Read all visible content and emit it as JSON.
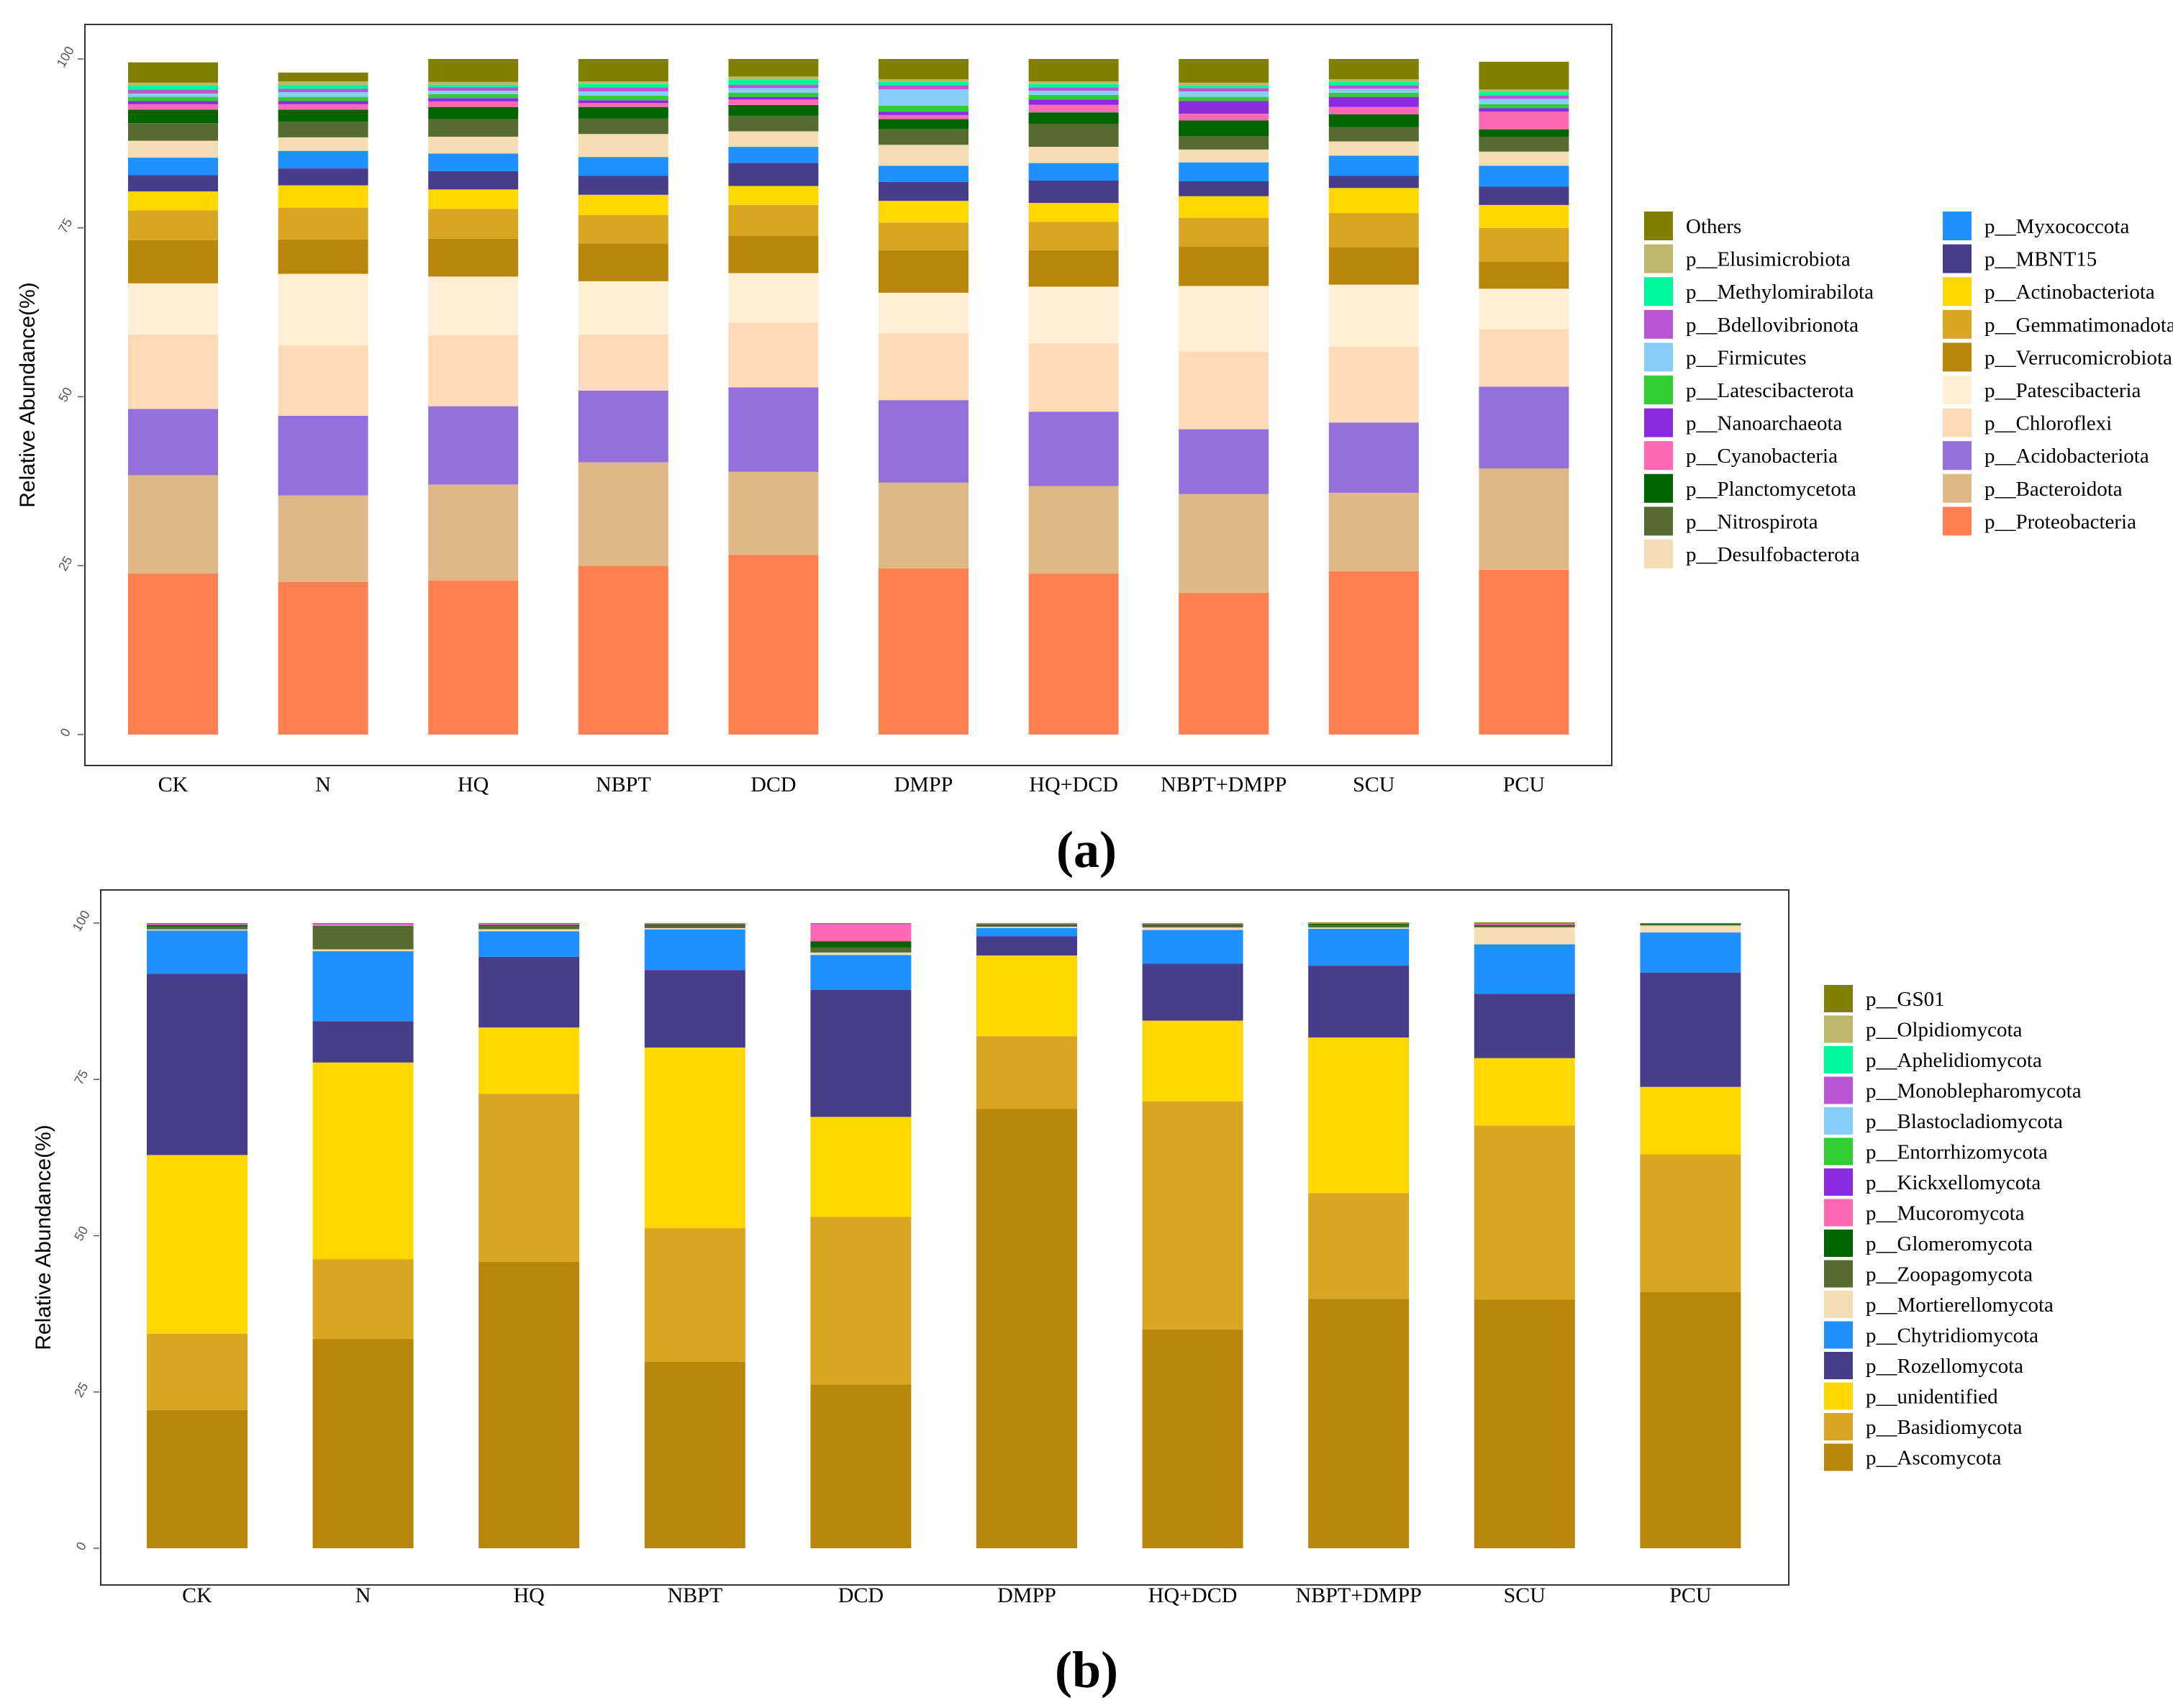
{
  "chart_data": [
    {
      "type": "bar",
      "stacked": true,
      "panel_label": "(a)",
      "title": "",
      "xlabel": "",
      "ylabel": "Relative Abundance(%)",
      "ylim": [
        0,
        100
      ],
      "yticks": [
        "0",
        "25",
        "50",
        "75",
        "100"
      ],
      "grid": false,
      "legend_position": "right",
      "categories": [
        "CK",
        "N",
        "HQ",
        "NBPT",
        "DCD",
        "DMPP",
        "HQ+DCD",
        "NBPT+DMPP",
        "SCU",
        "PCU"
      ],
      "series": [
        {
          "name": "p__Proteobacteria",
          "color": "#FF7F50",
          "values": [
            23.8,
            22.6,
            22.8,
            25.0,
            26.6,
            24.6,
            23.8,
            21.0,
            24.2,
            24.4
          ]
        },
        {
          "name": "p__Bacteroidota",
          "color": "#DEB887",
          "values": [
            14.6,
            12.8,
            14.2,
            15.3,
            12.3,
            12.7,
            13.0,
            14.6,
            11.6,
            15.0
          ]
        },
        {
          "name": "p__Acidobacteriota",
          "color": "#9370DB",
          "values": [
            9.8,
            11.8,
            11.6,
            10.6,
            12.5,
            12.2,
            11.0,
            9.6,
            10.4,
            12.1
          ]
        },
        {
          "name": "p__Chloroflexi",
          "color": "#FFDAB9",
          "values": [
            11.0,
            10.4,
            10.5,
            8.3,
            9.6,
            9.9,
            10.1,
            11.5,
            11.2,
            8.5
          ]
        },
        {
          "name": "p__Patescibacteria",
          "color": "#FFEFD5",
          "values": [
            7.6,
            10.6,
            8.7,
            7.9,
            7.3,
            6.0,
            8.4,
            9.7,
            9.2,
            6.0
          ]
        },
        {
          "name": "p__Verrucomicrobiota",
          "color": "#B8860B",
          "values": [
            6.4,
            5.1,
            5.6,
            5.6,
            5.5,
            6.3,
            5.4,
            5.8,
            5.5,
            4.0
          ]
        },
        {
          "name": "p__Gemmatimonadota",
          "color": "#DAA520",
          "values": [
            4.4,
            4.7,
            4.4,
            4.2,
            4.6,
            4.1,
            4.2,
            4.3,
            5.1,
            5.0
          ]
        },
        {
          "name": "p__Actinobacteriota",
          "color": "#FFD700",
          "values": [
            2.8,
            3.3,
            2.9,
            3.0,
            2.8,
            3.2,
            2.8,
            3.2,
            3.7,
            3.4
          ]
        },
        {
          "name": "p__MBNT15",
          "color": "#483D8B",
          "values": [
            2.4,
            2.5,
            2.7,
            2.8,
            3.4,
            2.8,
            3.3,
            2.2,
            1.8,
            2.7
          ]
        },
        {
          "name": "p__Myxococcota",
          "color": "#1E90FF",
          "values": [
            2.6,
            2.6,
            2.6,
            2.8,
            2.4,
            2.4,
            2.6,
            2.8,
            3.0,
            3.1
          ]
        },
        {
          "name": "p__Desulfobacterota",
          "color": "#F5DEB3",
          "values": [
            2.5,
            2.0,
            2.5,
            3.4,
            2.3,
            3.1,
            2.4,
            1.9,
            2.1,
            2.1
          ]
        },
        {
          "name": "p__Nitrospirota",
          "color": "#556B2F",
          "values": [
            2.6,
            2.3,
            2.6,
            2.3,
            2.3,
            2.3,
            3.4,
            2.0,
            2.1,
            2.2
          ]
        },
        {
          "name": "p__Planctomycetota",
          "color": "#006400",
          "values": [
            2.0,
            1.8,
            1.8,
            1.7,
            1.6,
            1.5,
            1.7,
            2.3,
            1.9,
            1.1
          ]
        },
        {
          "name": "p__Cyanobacteria",
          "color": "#FF69B4",
          "values": [
            0.8,
            0.8,
            0.8,
            0.6,
            0.8,
            0.6,
            1.1,
            1.0,
            1.1,
            2.6
          ]
        },
        {
          "name": "p__Nanoarchaeota",
          "color": "#8A2BE2",
          "values": [
            0.5,
            0.5,
            0.5,
            0.4,
            0.4,
            0.5,
            0.8,
            1.9,
            1.5,
            0.5
          ]
        },
        {
          "name": "p__Latescibacterota",
          "color": "#32CD32",
          "values": [
            0.6,
            0.6,
            0.6,
            0.7,
            0.6,
            0.9,
            0.7,
            0.6,
            0.6,
            0.6
          ]
        },
        {
          "name": "p__Firmicutes",
          "color": "#87CEFA",
          "values": [
            0.5,
            0.7,
            0.5,
            0.6,
            0.7,
            2.4,
            0.6,
            0.8,
            0.6,
            0.8
          ]
        },
        {
          "name": "p__Bdellovibrionota",
          "color": "#BA55D3",
          "values": [
            0.6,
            0.5,
            0.5,
            0.6,
            0.5,
            0.6,
            0.5,
            0.5,
            0.5,
            0.5
          ]
        },
        {
          "name": "p__Methylomirabilota",
          "color": "#00FA9A",
          "values": [
            0.6,
            0.6,
            0.4,
            0.5,
            0.7,
            0.5,
            0.5,
            0.4,
            0.5,
            0.5
          ]
        },
        {
          "name": "p__Elusimicrobiota",
          "color": "#BDB76B",
          "values": [
            0.4,
            0.5,
            0.4,
            0.4,
            0.5,
            0.4,
            0.4,
            0.4,
            0.4,
            0.4
          ]
        },
        {
          "name": "Others",
          "color": "#808000",
          "values": [
            3.0,
            1.3,
            3.4,
            3.3,
            2.6,
            3.0,
            3.3,
            3.5,
            3.0,
            4.1
          ]
        }
      ],
      "legend": [
        [
          "Others",
          "p__Elusimicrobiota",
          "p__Methylomirabilota",
          "p__Bdellovibrionota",
          "p__Firmicutes",
          "p__Latescibacterota",
          "p__Nanoarchaeota",
          "p__Cyanobacteria",
          "p__Planctomycetota",
          "p__Nitrospirota",
          "p__Desulfobacterota"
        ],
        [
          "p__Myxococcota",
          "p__MBNT15",
          "p__Actinobacteriota",
          "p__Gemmatimonadota",
          "p__Verrucomicrobiota",
          "p__Patescibacteria",
          "p__Chloroflexi",
          "p__Acidobacteriota",
          "p__Bacteroidota",
          "p__Proteobacteria"
        ]
      ]
    },
    {
      "type": "bar",
      "stacked": true,
      "panel_label": "(b)",
      "title": "",
      "xlabel": "",
      "ylabel": "Relative Abundance(%)",
      "ylim": [
        0,
        100
      ],
      "yticks": [
        "0",
        "25",
        "50",
        "75",
        "100"
      ],
      "grid": false,
      "legend_position": "right",
      "categories": [
        "CK",
        "N",
        "HQ",
        "NBPT",
        "DCD",
        "DMPP",
        "HQ+DCD",
        "NBPT+DMPP",
        "SCU",
        "PCU"
      ],
      "series": [
        {
          "name": "p__Ascomycota",
          "color": "#B8860B",
          "values": [
            22.1,
            33.5,
            45.8,
            29.8,
            26.2,
            70.3,
            35.0,
            39.9,
            39.8,
            41.0
          ]
        },
        {
          "name": "p__Basidiomycota",
          "color": "#DAA520",
          "values": [
            12.2,
            12.7,
            26.9,
            21.4,
            26.8,
            11.6,
            36.5,
            16.9,
            27.8,
            22.0
          ]
        },
        {
          "name": "p__unidentified",
          "color": "#FFD700",
          "values": [
            28.6,
            31.5,
            10.6,
            28.9,
            16.0,
            12.9,
            12.9,
            24.9,
            10.8,
            10.8
          ]
        },
        {
          "name": "p__Rozellomycota",
          "color": "#483D8B",
          "values": [
            29.0,
            6.6,
            11.3,
            12.4,
            20.3,
            3.1,
            9.1,
            11.5,
            10.3,
            18.3
          ]
        },
        {
          "name": "p__Chytridiomycota",
          "color": "#1E90FF",
          "values": [
            6.9,
            11.2,
            4.1,
            6.5,
            5.6,
            1.3,
            5.4,
            5.9,
            7.9,
            6.4
          ]
        },
        {
          "name": "p__Mortierellomycota",
          "color": "#F5DEB3",
          "values": [
            0.2,
            0.3,
            0.3,
            0.2,
            0.4,
            0.2,
            0.4,
            0.2,
            2.7,
            1.1
          ]
        },
        {
          "name": "p__Zoopagomycota",
          "color": "#556B2F",
          "values": [
            0.4,
            3.5,
            0.5,
            0.4,
            0.8,
            0.2,
            0.3,
            0.4,
            0.2,
            0.2
          ]
        },
        {
          "name": "p__Glomeromycota",
          "color": "#006400",
          "values": [
            0.3,
            0.2,
            0.2,
            0.2,
            1.0,
            0.2,
            0.2,
            0.2,
            0.2,
            0.1
          ]
        },
        {
          "name": "p__Mucoromycota",
          "color": "#FF69B4",
          "values": [
            0.1,
            0.3,
            0.1,
            0.1,
            2.7,
            0.1,
            0.1,
            0.1,
            0.1,
            0.0
          ]
        },
        {
          "name": "p__Kickxellomycota",
          "color": "#8A2BE2",
          "values": [
            0.0,
            0.0,
            0.0,
            0.0,
            0.0,
            0.0,
            0.0,
            0.0,
            0.0,
            0.0
          ]
        },
        {
          "name": "p__Entorrhizomycota",
          "color": "#32CD32",
          "values": [
            0.0,
            0.0,
            0.0,
            0.0,
            0.0,
            0.0,
            0.0,
            0.0,
            0.0,
            0.0
          ]
        },
        {
          "name": "p__Blastocladiomycota",
          "color": "#87CEFA",
          "values": [
            0.0,
            0.0,
            0.0,
            0.0,
            0.0,
            0.0,
            0.0,
            0.0,
            0.0,
            0.0
          ]
        },
        {
          "name": "p__Monoblepharomycota",
          "color": "#BA55D3",
          "values": [
            0.1,
            0.1,
            0.1,
            0.0,
            0.1,
            0.0,
            0.0,
            0.0,
            0.2,
            0.0
          ]
        },
        {
          "name": "p__Aphelidiomycota",
          "color": "#00FA9A",
          "values": [
            0.0,
            0.0,
            0.0,
            0.0,
            0.0,
            0.0,
            0.0,
            0.0,
            0.0,
            0.0
          ]
        },
        {
          "name": "p__Olpidiomycota",
          "color": "#BDB76B",
          "values": [
            0.0,
            0.0,
            0.0,
            0.0,
            0.0,
            0.0,
            0.0,
            0.0,
            0.0,
            0.0
          ]
        },
        {
          "name": "p__GS01",
          "color": "#808000",
          "values": [
            0.1,
            0.1,
            0.1,
            0.1,
            0.1,
            0.1,
            0.1,
            0.1,
            0.1,
            0.1
          ]
        }
      ],
      "legend": [
        [
          "p__GS01",
          "p__Olpidiomycota",
          "p__Aphelidiomycota",
          "p__Monoblepharomycota",
          "p__Blastocladiomycota",
          "p__Entorrhizomycota",
          "p__Kickxellomycota",
          "p__Mucoromycota",
          "p__Glomeromycota",
          "p__Zoopagomycota",
          "p__Mortierellomycota",
          "p__Chytridiomycota",
          "p__Rozellomycota",
          "p__unidentified",
          "p__Basidiomycota",
          "p__Ascomycota"
        ]
      ]
    }
  ]
}
